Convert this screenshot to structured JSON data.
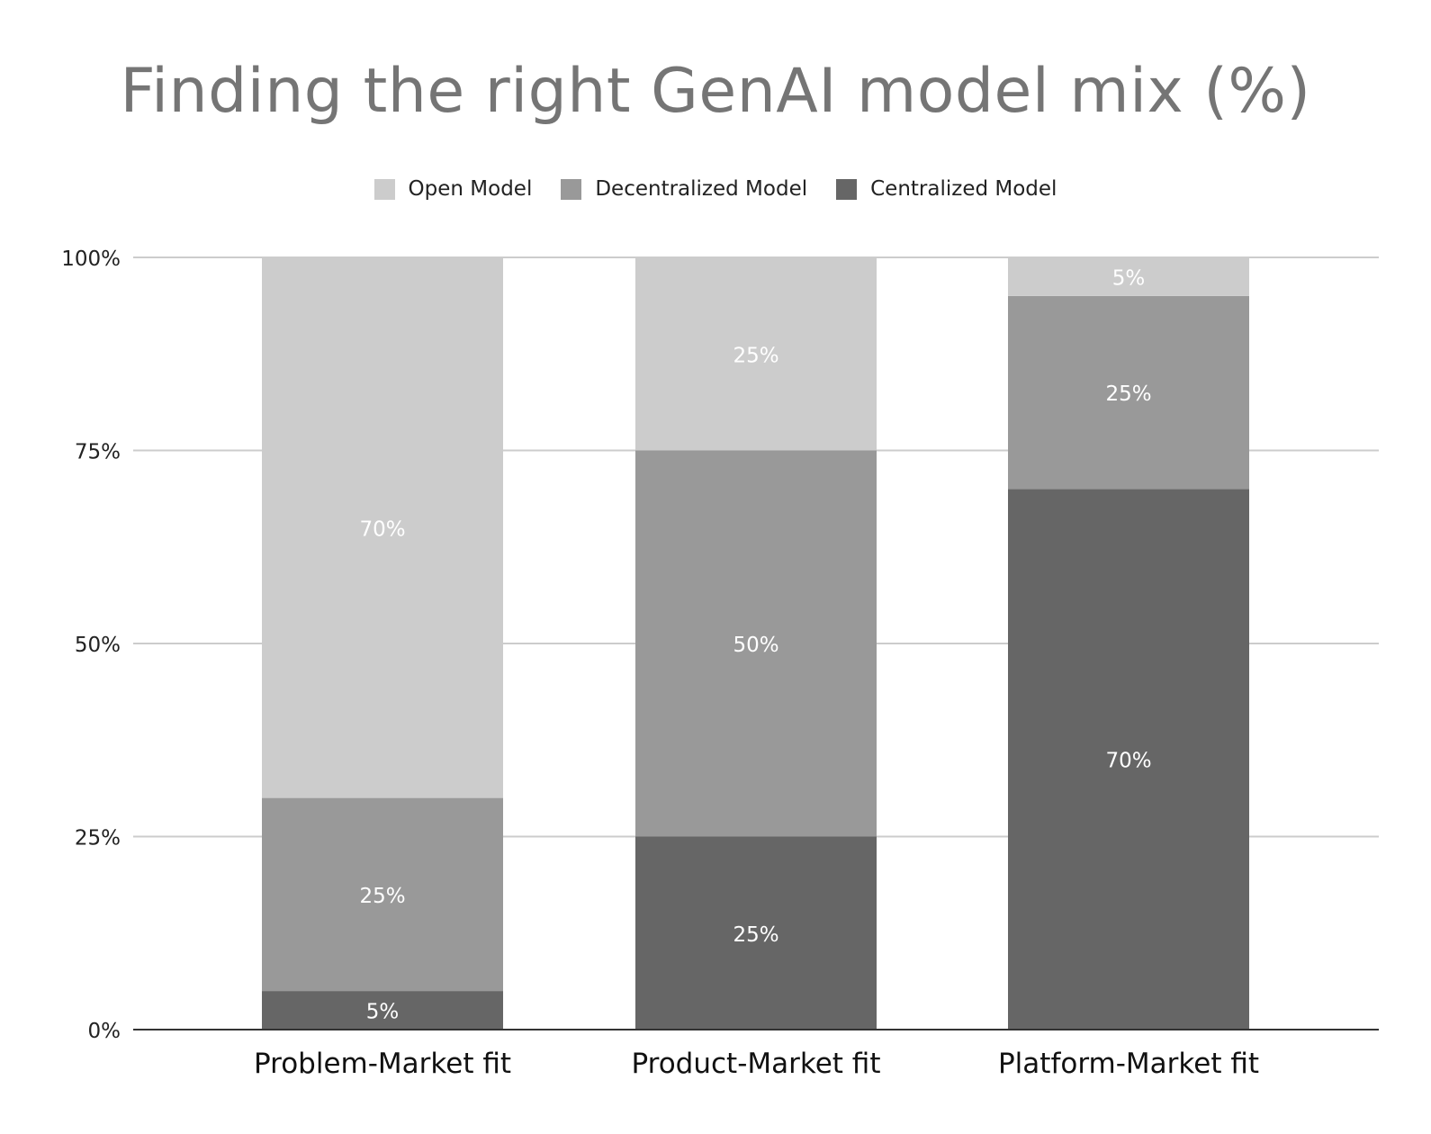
{
  "chart_data": {
    "type": "bar",
    "stacked": true,
    "title": "Finding the right GenAI model mix (%)",
    "xlabel": "",
    "ylabel": "",
    "categories": [
      "Problem-Market fit",
      "Product-Market fit",
      "Platform-Market fit"
    ],
    "series": [
      {
        "name": "Centralized Model",
        "color": "#666666",
        "values": [
          5,
          25,
          70
        ],
        "labels": [
          "5%",
          "25%",
          "70%"
        ]
      },
      {
        "name": "Decentralized Model",
        "color": "#999999",
        "values": [
          25,
          50,
          25
        ],
        "labels": [
          "25%",
          "50%",
          "25%"
        ]
      },
      {
        "name": "Open Model",
        "color": "#cccccc",
        "values": [
          70,
          25,
          5
        ],
        "labels": [
          "70%",
          "25%",
          "5%"
        ]
      }
    ],
    "legend_order": [
      "Open Model",
      "Decentralized Model",
      "Centralized Model"
    ],
    "legend_position": "top-center",
    "ylim": [
      0,
      100
    ],
    "yticks": [
      0,
      25,
      50,
      75,
      100
    ],
    "ytick_labels": [
      "0%",
      "25%",
      "50%",
      "75%",
      "100%"
    ],
    "grid": true
  }
}
